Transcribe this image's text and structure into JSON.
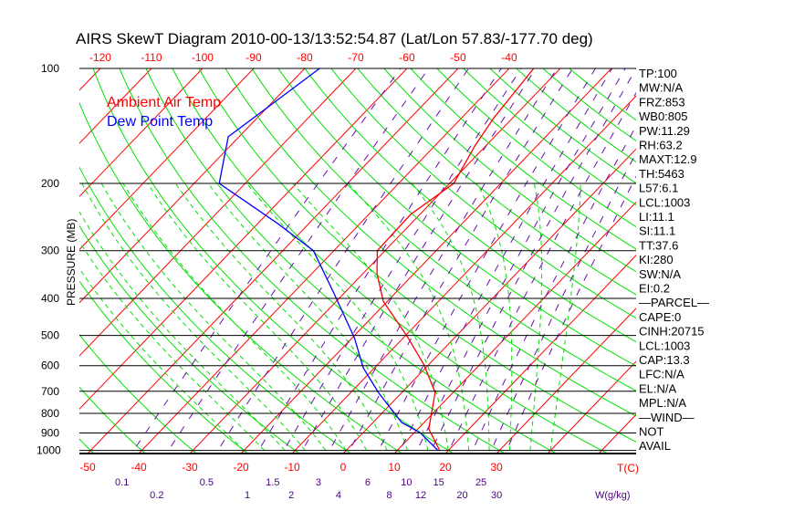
{
  "chart_data": {
    "type": "line",
    "title": "AIRS SkewT Diagram 2010-00-13/13:52:54.87 (Lat/Lon 57.83/-177.70 deg)",
    "ylabel": "PRESSURE (MB)",
    "xlabel_temp": "T(C)",
    "xlabel_mixing": "W(g/kg)",
    "pressure_ticks": [
      100,
      200,
      300,
      400,
      500,
      600,
      700,
      800,
      900,
      1000
    ],
    "top_temp_ticks": [
      -120,
      -110,
      -100,
      -90,
      -80,
      -70,
      -60,
      -50,
      -40
    ],
    "bottom_temp_ticks": [
      -50,
      -40,
      -30,
      -20,
      -10,
      0,
      10,
      20,
      30
    ],
    "mixing_ratio_ticks": [
      "0.1",
      "0.2",
      "0.5",
      "1",
      "1.5",
      "2",
      "3",
      "4",
      "6",
      "8",
      "10",
      "12",
      "15",
      "20",
      "25",
      "30"
    ],
    "ylim": [
      100,
      1050
    ],
    "legend": [
      {
        "label": "Ambient Air Temp",
        "color": "#ff0000"
      },
      {
        "label": "Dew Point Temp",
        "color": "#0000ff"
      }
    ],
    "series": [
      {
        "name": "Ambient Air Temp",
        "color": "#ff0000",
        "pressure": [
          1002,
          878,
          705,
          598,
          507,
          407,
          345,
          300,
          241,
          200,
          160,
          135,
          100
        ],
        "temperature": [
          18.4,
          12.1,
          6.5,
          -0.8,
          -9.1,
          -20.8,
          -27.2,
          -31.5,
          -31.8,
          -29.2,
          -32.1,
          -33.7,
          -35.2
        ]
      },
      {
        "name": "Dew Point Temp",
        "color": "#0000ff",
        "pressure": [
          1002,
          898,
          845,
          705,
          608,
          507,
          385,
          300,
          255,
          200,
          151,
          100
        ],
        "temperature": [
          18.1,
          11.1,
          5.6,
          -4.6,
          -12.2,
          -19.6,
          -32.3,
          -44,
          -56,
          -75.1,
          -82.1,
          -77.1
        ]
      }
    ],
    "colors": {
      "isotherm": "#ff0000",
      "dry_adiabat": "#00e000",
      "moist_adiabat": "#00e000",
      "mixing_ratio": "#6a0dad",
      "isobar": "#000000"
    }
  },
  "stats": [
    "TP:100",
    "MW:N/A",
    "FRZ:853",
    "WB0:805",
    "PW:11.29",
    "RH:63.2",
    "MAXT:12.9",
    "TH:5463",
    "L57:6.1",
    "LCL:1003",
    "LI:11.1",
    "SI:11.1",
    "TT:37.6",
    "KI:280",
    "SW:N/A",
    "EI:0.2",
    "—PARCEL—",
    "CAPE:0",
    "CINH:20715",
    "LCL:1003",
    "CAP:13.3",
    "LFC:N/A",
    "EL:N/A",
    "MPL:N/A",
    "—WIND—",
    "NOT",
    "AVAIL"
  ]
}
